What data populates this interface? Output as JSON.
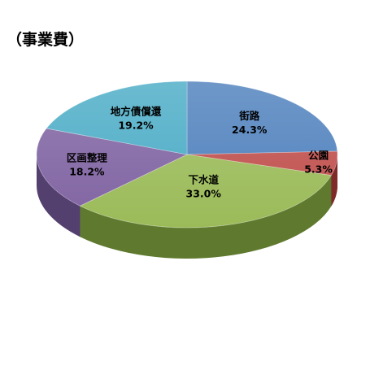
{
  "chart_data": {
    "type": "pie",
    "title": "（事業費）",
    "unit": "%",
    "slices": [
      {
        "label": "街路",
        "value": 24.3,
        "value_text": "24.3%",
        "color": "#4f81bd",
        "side": "#385d8a"
      },
      {
        "label": "公園",
        "value": 5.3,
        "value_text": "5.3%",
        "color": "#c0504d",
        "side": "#7f2a28"
      },
      {
        "label": "下水道",
        "value": 33.0,
        "value_text": "33.0%",
        "color": "#9bbb59",
        "side": "#5f7a2e"
      },
      {
        "label": "区画整理",
        "value": 18.2,
        "value_text": "18.2%",
        "color": "#8064a2",
        "side": "#54406f"
      },
      {
        "label": "地方債償還",
        "value": 19.2,
        "value_text": "19.2%",
        "color": "#4bacc6",
        "side": "#2c7f96"
      }
    ],
    "three_d": true,
    "legend": "none"
  }
}
